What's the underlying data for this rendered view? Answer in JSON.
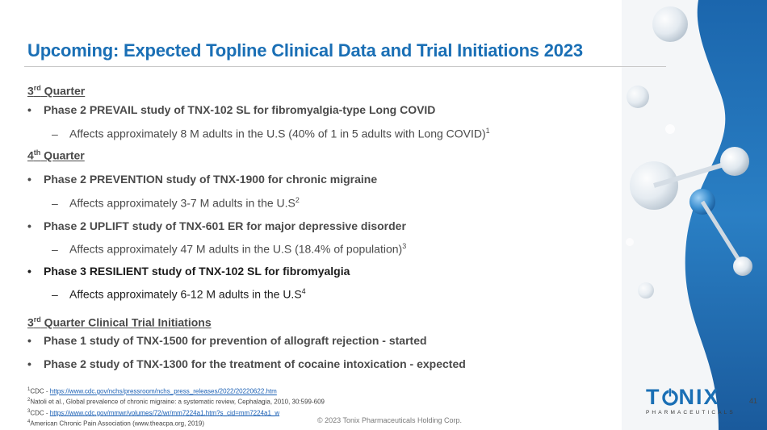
{
  "title": "Upcoming: Expected Topline Clinical Data and Trial Initiations 2023",
  "sections": {
    "q3": {
      "num": "3",
      "sup": "rd",
      "label": " Quarter"
    },
    "q3_bullet": "Phase 2 PREVAIL study of TNX-102 SL for fibromyalgia-type Long COVID",
    "q3_sub": "Affects approximately 8 M adults in the U.S (40% of 1 in 5 adults with Long COVID)",
    "q3_sub_ref": "1",
    "q4": {
      "num": "4",
      "sup": "th",
      "label": " Quarter"
    },
    "q4_b1": "Phase 2 PREVENTION study of TNX-1900 for chronic migraine",
    "q4_b1_sub": "Affects approximately 3-7 M adults in the U.S",
    "q4_b1_ref": "2",
    "q4_b2": "Phase 2 UPLIFT study of TNX-601 ER for major depressive disorder",
    "q4_b2_sub": "Affects approximately 47 M adults in the U.S (18.4% of population)",
    "q4_b2_ref": "3",
    "q4_b3": "Phase 3 RESILIENT study of TNX-102 SL for fibromyalgia",
    "q4_b3_sub": "Affects approximately 6-12 M adults in the U.S",
    "q4_b3_ref": "4",
    "init": {
      "num": "3",
      "sup": "rd",
      "label": " Quarter Clinical Trial Initiations"
    },
    "init_b1": "Phase 1 study of TNX-1500 for prevention of allograft rejection - started",
    "init_b2": "Phase 2 study of TNX-1300 for the treatment of cocaine intoxication - expected"
  },
  "bullet_char": "•",
  "dash_char": "–",
  "footnotes": [
    {
      "num": "1",
      "prefix": "CDC - ",
      "link": "https://www.cdc.gov/nchs/pressroom/nchs_press_releases/2022/20220622.htm",
      "text": ""
    },
    {
      "num": "2",
      "prefix": "",
      "link": "",
      "text": "Natoli et al., Global prevalence of chronic migraine: a systematic review, Cephalagia, 2010, 30:599-609"
    },
    {
      "num": "3",
      "prefix": "CDC - ",
      "link": "https://www.cdc.gov/mmwr/volumes/72/wr/mm7224a1.htm?s_cid=mm7224a1_w",
      "text": ""
    },
    {
      "num": "4",
      "prefix": "",
      "link": "",
      "text": "American Chronic Pain Association (www.theacpa.org, 2019)"
    }
  ],
  "copyright": "© 2023 Tonix Pharmaceuticals Holding Corp.",
  "page_number": "41",
  "logo": {
    "word_t": "T",
    "word_rest": "NIX",
    "subtitle": "PHARMACEUTICALS"
  },
  "colors": {
    "title": "#1a6fb5",
    "text": "#4a4a4a",
    "link": "#1a5fb4",
    "art_blue": "#1b66ad"
  }
}
